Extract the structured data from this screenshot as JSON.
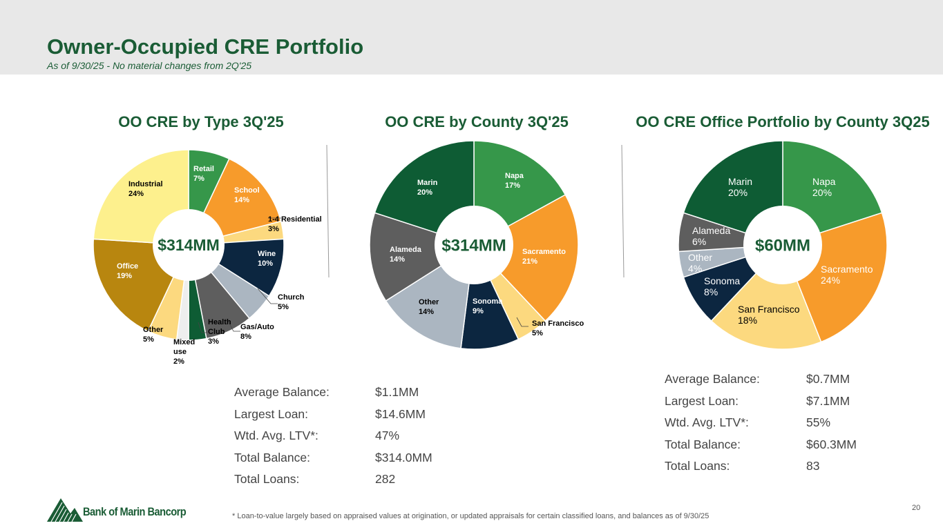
{
  "header": {
    "title": "Owner-Occupied CRE Portfolio",
    "subtitle": "As of 9/30/25 - No material changes from 2Q'25"
  },
  "colors": {
    "dark_green": "#0e5c34",
    "green": "#36974a",
    "orange": "#f79b2b",
    "light_yellow": "#fcd97f",
    "navy": "#0c2640",
    "light_gray": "#abb6c1",
    "dark_gray": "#5e5e5e",
    "very_light": "#eeeeee",
    "pale_yellow": "#fdf08d",
    "gold": "#b8860f"
  },
  "chart_data": [
    {
      "type": "pie",
      "title": "OO CRE by Type 3Q'25",
      "center_label": "$314MM",
      "slices": [
        {
          "label": "Retail",
          "pct_label": "7%",
          "value": 7,
          "color": "#36974a"
        },
        {
          "label": "School",
          "pct_label": "14%",
          "value": 14,
          "color": "#f79b2b"
        },
        {
          "label": "1-4 Residential",
          "pct_label": "3%",
          "value": 3,
          "color": "#fcd97f"
        },
        {
          "label": "Wine",
          "pct_label": "10%",
          "value": 10,
          "color": "#0c2640"
        },
        {
          "label": "Church",
          "pct_label": "5%",
          "value": 5,
          "color": "#abb6c1"
        },
        {
          "label": "Gas/Auto",
          "pct_label": "8%",
          "value": 8,
          "color": "#5e5e5e"
        },
        {
          "label": "Health Club",
          "pct_label": "3%",
          "value": 3,
          "color": "#0e5c34"
        },
        {
          "label": "Mixed use",
          "pct_label": "2%",
          "value": 2,
          "color": "#eeeeee"
        },
        {
          "label": "Other",
          "pct_label": "5%",
          "value": 5,
          "color": "#fcd97f"
        },
        {
          "label": "Office",
          "pct_label": "19%",
          "value": 19,
          "color": "#b8860f"
        },
        {
          "label": "Industrial",
          "pct_label": "24%",
          "value": 24,
          "color": "#fdf08d"
        }
      ]
    },
    {
      "type": "pie",
      "title": "OO CRE by County 3Q'25",
      "center_label": "$314MM",
      "slices": [
        {
          "label": "Napa",
          "pct_label": "17%",
          "value": 17,
          "color": "#36974a"
        },
        {
          "label": "Sacramento",
          "pct_label": "21%",
          "value": 21,
          "color": "#f79b2b"
        },
        {
          "label": "San Francisco",
          "pct_label": "5%",
          "value": 5,
          "color": "#fcd97f"
        },
        {
          "label": "Sonoma",
          "pct_label": "9%",
          "value": 9,
          "color": "#0c2640"
        },
        {
          "label": "Other",
          "pct_label": "14%",
          "value": 14,
          "color": "#abb6c1"
        },
        {
          "label": "Alameda",
          "pct_label": "14%",
          "value": 14,
          "color": "#5e5e5e"
        },
        {
          "label": "Marin",
          "pct_label": "20%",
          "value": 20,
          "color": "#0e5c34"
        }
      ]
    },
    {
      "type": "pie",
      "title": "OO CRE Office Portfolio by County 3Q25",
      "center_label": "$60MM",
      "slices": [
        {
          "label": "Napa",
          "pct_label": "20%",
          "value": 20,
          "color": "#36974a"
        },
        {
          "label": "Sacramento",
          "pct_label": "24%",
          "value": 24,
          "color": "#f79b2b"
        },
        {
          "label": "San Francisco",
          "pct_label": "18%",
          "value": 18,
          "color": "#fcd97f"
        },
        {
          "label": "Sonoma",
          "pct_label": "8%",
          "value": 8,
          "color": "#0c2640"
        },
        {
          "label": "Other",
          "pct_label": "4%",
          "value": 4,
          "color": "#abb6c1"
        },
        {
          "label": "Alameda",
          "pct_label": "6%",
          "value": 6,
          "color": "#5e5e5e"
        },
        {
          "label": "Marin",
          "pct_label": "20%",
          "value": 20,
          "color": "#0e5c34"
        }
      ]
    }
  ],
  "stats_left": [
    {
      "label": "Average Balance:",
      "value": "$1.1MM"
    },
    {
      "label": "Largest Loan:",
      "value": "$14.6MM"
    },
    {
      "label": "Wtd. Avg. LTV*:",
      "value": "47%"
    },
    {
      "label": "Total Balance:",
      "value": "$314.0MM"
    },
    {
      "label": "Total Loans:",
      "value": "282"
    }
  ],
  "stats_right": [
    {
      "label": "Average Balance:",
      "value": "$0.7MM"
    },
    {
      "label": "Largest Loan:",
      "value": "$7.1MM"
    },
    {
      "label": "Wtd. Avg. LTV*:",
      "value": "55%"
    },
    {
      "label": "Total Balance:",
      "value": "$60.3MM"
    },
    {
      "label": "Total Loans:",
      "value": "83"
    }
  ],
  "footer": {
    "footnote": "*  Loan-to-value largely based on appraised values at origination, or updated appraisals for certain classified loans, and balances as of 9/30/25",
    "page_number": "20",
    "logo_text": "Bank of Marin Bancorp"
  }
}
